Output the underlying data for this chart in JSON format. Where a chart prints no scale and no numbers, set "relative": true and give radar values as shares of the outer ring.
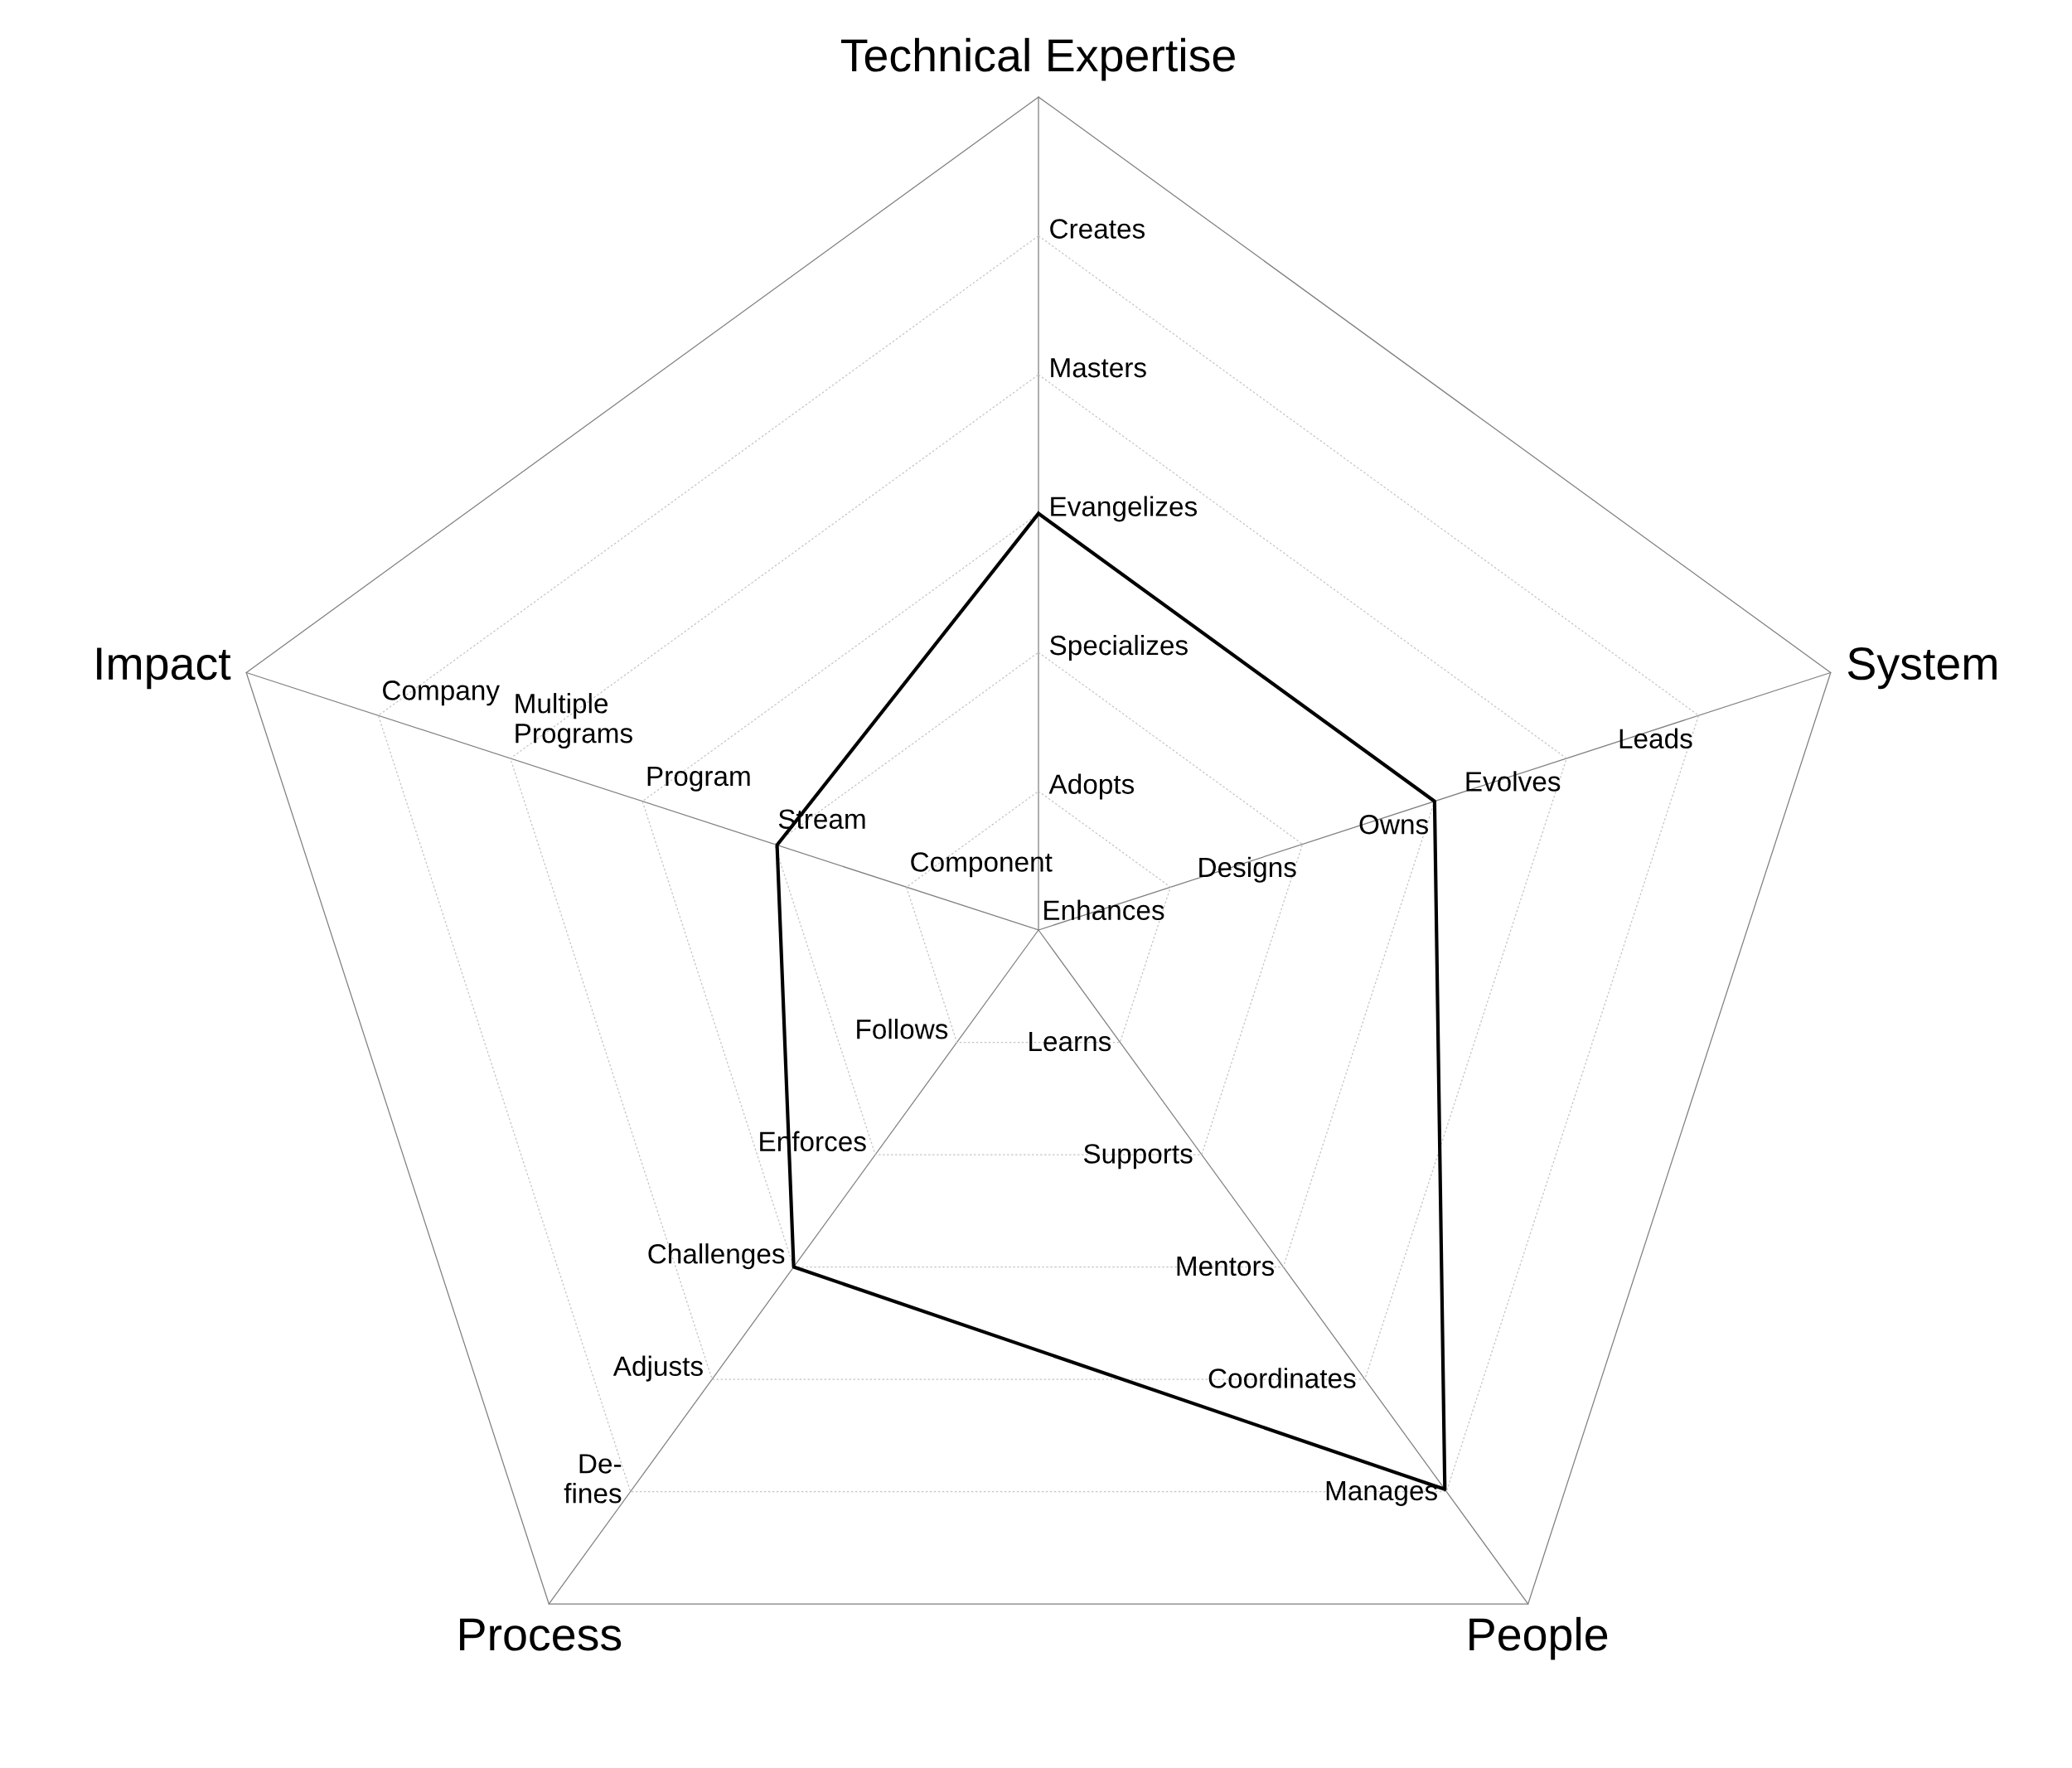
{
  "chart_data": {
    "type": "radar",
    "relative": true,
    "categories": [
      "Technical Expertise",
      "System",
      "People",
      "Process",
      "Impact"
    ],
    "series": [
      {
        "color": "#000000",
        "values": [
          0.5,
          0.5,
          0.83,
          0.5,
          0.33
        ]
      }
    ],
    "grid": true,
    "line_style": "solid",
    "annotations": [
      {
        "text": "Adopts",
        "x": "Technical Expertise"
      },
      {
        "text": "Specializes",
        "x": "Technical Expertise"
      },
      {
        "text": "Evangelizes",
        "x": "Technical Expertise"
      },
      {
        "text": "Masters",
        "x": "Technical Expertise"
      },
      {
        "text": "Creates",
        "x": "Technical Expertise"
      },
      {
        "text": "Enhances",
        "x": "System"
      },
      {
        "text": "Designs",
        "x": "System"
      },
      {
        "text": "Owns",
        "x": "System"
      },
      {
        "text": "Evolves",
        "x": "System"
      },
      {
        "text": "Leads",
        "x": "System"
      },
      {
        "text": "Learns",
        "x": "People"
      },
      {
        "text": "Supports",
        "x": "People"
      },
      {
        "text": "Mentors",
        "x": "People"
      },
      {
        "text": "Coordinates",
        "x": "People"
      },
      {
        "text": "Manages",
        "x": "People"
      },
      {
        "text": "Follows",
        "x": "Process"
      },
      {
        "text": "Enforces",
        "x": "Process"
      },
      {
        "text": "Challenges",
        "x": "Process"
      },
      {
        "text": "Adjusts",
        "x": "Process"
      },
      {
        "text": "De-\nfines",
        "x": "Process"
      },
      {
        "text": "Component",
        "x": "Impact"
      },
      {
        "text": "Stream",
        "x": "Impact"
      },
      {
        "text": "Program",
        "x": "Impact"
      },
      {
        "text": "Multiple\nPrograms",
        "x": "Impact"
      },
      {
        "text": "Company",
        "x": "Impact"
      }
    ]
  }
}
